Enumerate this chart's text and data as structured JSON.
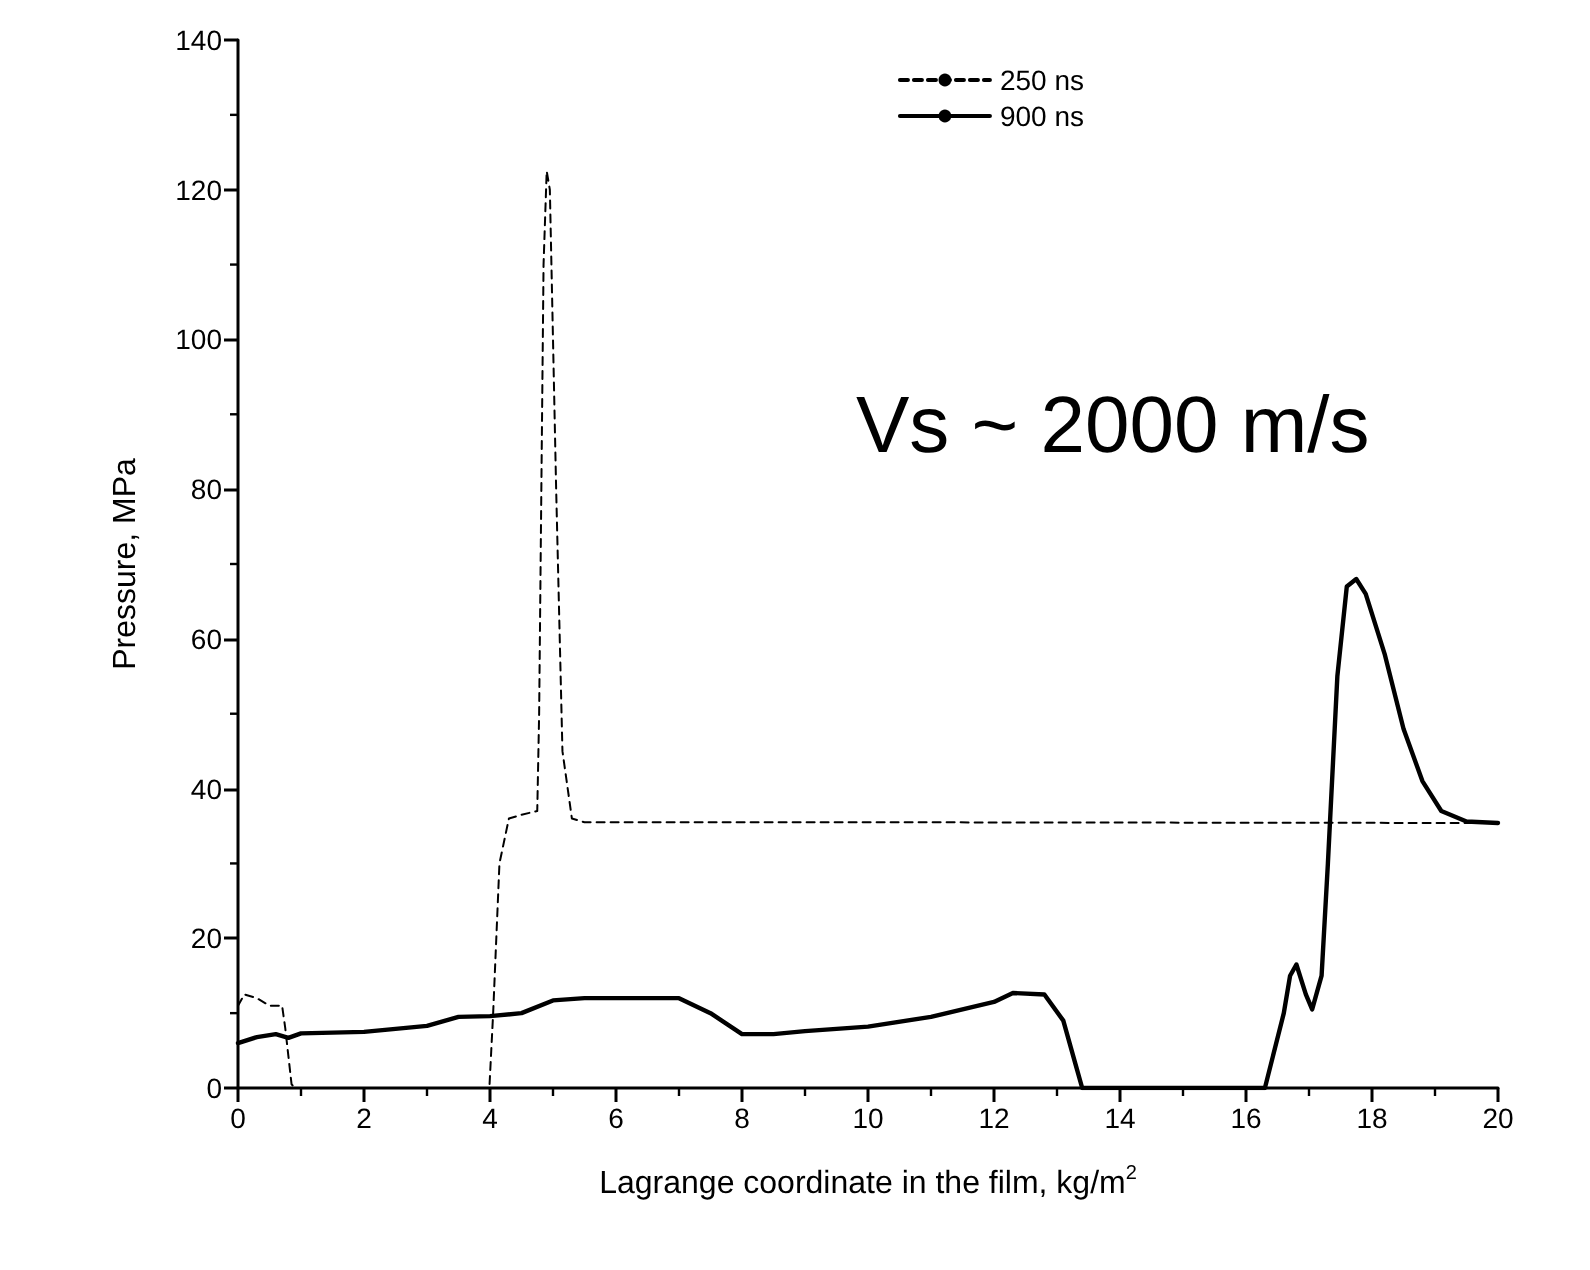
{
  "chart_data": {
    "type": "line",
    "xlabel": "Lagrange coordinate in the film, kg/m$^{2}$",
    "ylabel": "Pressure, MPa",
    "annotations": [
      "Vs ~ 2000 m/s"
    ],
    "xlim": [
      0,
      20
    ],
    "xticks": [
      0,
      2,
      4,
      6,
      8,
      10,
      12,
      14,
      16,
      18,
      20
    ],
    "ylim": [
      0,
      140
    ],
    "yticks": [
      0,
      20,
      40,
      60,
      80,
      100,
      120,
      140
    ],
    "grid": false,
    "legend": "top right",
    "marker": "none",
    "series": [
      {
        "name": "250 ns",
        "color": "#000000",
        "line_style": "dashed",
        "x": [
          0,
          0.1,
          0.3,
          0.5,
          0.7,
          0.75,
          0.85,
          0.9,
          3,
          3.99,
          4.05,
          4.15,
          4.3,
          4.5,
          4.75,
          4.78,
          4.85,
          4.9,
          4.95,
          5.05,
          5.15,
          5.3,
          5.5,
          10,
          20
        ],
        "values": [
          11,
          12.5,
          12,
          11,
          11,
          8,
          0.5,
          0,
          0,
          0,
          10,
          30,
          36,
          36.5,
          37,
          50,
          110,
          122.5,
          120,
          80,
          45,
          36,
          35.5,
          35.5,
          35.4
        ]
      },
      {
        "name": "900 ns",
        "color": "#000000",
        "line_style": "solid",
        "x": [
          0,
          0.3,
          0.6,
          0.8,
          1,
          2,
          3,
          3.5,
          4,
          4.5,
          5,
          5.5,
          6,
          6.5,
          7,
          7.5,
          8,
          8.5,
          9,
          10,
          11,
          12,
          12.3,
          12.8,
          13.1,
          13.3,
          13.4,
          16.3,
          16.6,
          16.7,
          16.8,
          16.95,
          17.05,
          17.2,
          17.3,
          17.45,
          17.6,
          17.75,
          17.9,
          18.2,
          18.5,
          18.8,
          19.1,
          19.5,
          20
        ],
        "values": [
          6,
          6.8,
          7.2,
          6.7,
          7.3,
          7.5,
          8.3,
          9.5,
          9.6,
          10,
          11.7,
          12,
          12,
          12,
          12,
          10,
          7.2,
          7.2,
          7.6,
          8.2,
          9.5,
          11.5,
          12.7,
          12.5,
          9,
          3,
          0,
          0,
          10,
          15,
          16.5,
          12.5,
          10.5,
          15,
          30,
          55,
          67,
          68,
          66,
          58,
          48,
          41,
          37,
          35.6,
          35.4
        ]
      }
    ]
  }
}
